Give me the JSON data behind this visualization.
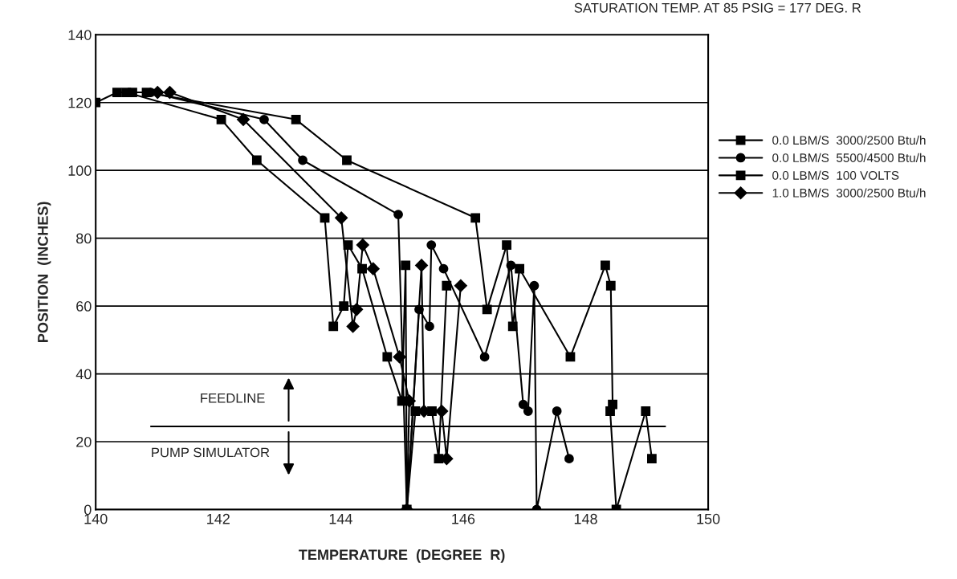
{
  "chart_data": {
    "type": "line",
    "title": "SATURATION TEMP. AT 85 PSIG = 177 DEG. R",
    "xlabel": "TEMPERATURE  (DEGREE  R)",
    "ylabel": "POSITION  (INCHES)",
    "xlim": [
      140,
      150
    ],
    "xticks": [
      140,
      142,
      144,
      146,
      148,
      150
    ],
    "ylim": [
      0,
      140
    ],
    "yticks": [
      0,
      20,
      40,
      60,
      80,
      100,
      120,
      140
    ],
    "grid": "y",
    "legend": "right",
    "line_style": "solid",
    "series": [
      {
        "name": "0.0 LBM/S  3000/2500 Btu/h",
        "color": "#000000",
        "marker": "square",
        "x": [
          140.5,
          142.05,
          142.63,
          143.74,
          143.88,
          144.05,
          144.12,
          144.35,
          144.76,
          145.0,
          145.06,
          145.08,
          145.22,
          145.49,
          145.6,
          145.73
        ],
        "values": [
          123,
          115,
          103,
          86,
          54,
          60,
          78,
          71,
          45,
          32,
          72,
          0,
          29,
          29,
          15,
          66
        ]
      },
      {
        "name": "0.0 LBM/S  5500/4500 Btu/h",
        "color": "#000000",
        "marker": "circle",
        "x": [
          140.9,
          142.75,
          143.38,
          144.94,
          145.08,
          145.28,
          145.45,
          145.48,
          145.68,
          146.35,
          146.78,
          146.98,
          147.06,
          147.16,
          147.2,
          147.53,
          147.73
        ],
        "values": [
          123,
          115,
          103,
          87,
          0,
          59,
          54,
          78,
          71,
          45,
          72,
          31,
          29,
          66,
          0,
          29,
          15
        ]
      },
      {
        "name": "0.0 LBM/S  100 VOLTS",
        "color": "#000000",
        "marker": "square",
        "x": [
          140.0,
          140.35,
          140.6,
          140.83,
          143.27,
          144.1,
          146.2,
          146.39,
          146.71,
          146.81,
          146.92,
          147.75,
          148.32,
          148.41,
          148.44,
          148.4,
          148.5,
          148.98,
          149.08
        ],
        "values": [
          120,
          123,
          123,
          123,
          115,
          103,
          86,
          59,
          78,
          54,
          71,
          45,
          72,
          66,
          31,
          29,
          0,
          29,
          15
        ]
      },
      {
        "name": "1.0 LBM/S  3000/2500 Btu/h",
        "color": "#000000",
        "marker": "diamond",
        "x": [
          141.01,
          141.21,
          142.41,
          144.01,
          144.2,
          144.26,
          144.36,
          144.53,
          144.96,
          145.12,
          145.08,
          145.32,
          145.36,
          145.65,
          145.73,
          145.96
        ],
        "values": [
          123,
          123,
          115,
          86,
          54,
          59,
          78,
          71,
          45,
          32,
          0,
          72,
          29,
          29,
          15,
          66
        ]
      }
    ],
    "ref_lines": [
      {
        "axis": "y",
        "value": 24.5,
        "color": "#000000",
        "line_style": "solid"
      }
    ],
    "annotations": [
      "FEEDLINE",
      "PUMP SIMULATOR"
    ]
  }
}
